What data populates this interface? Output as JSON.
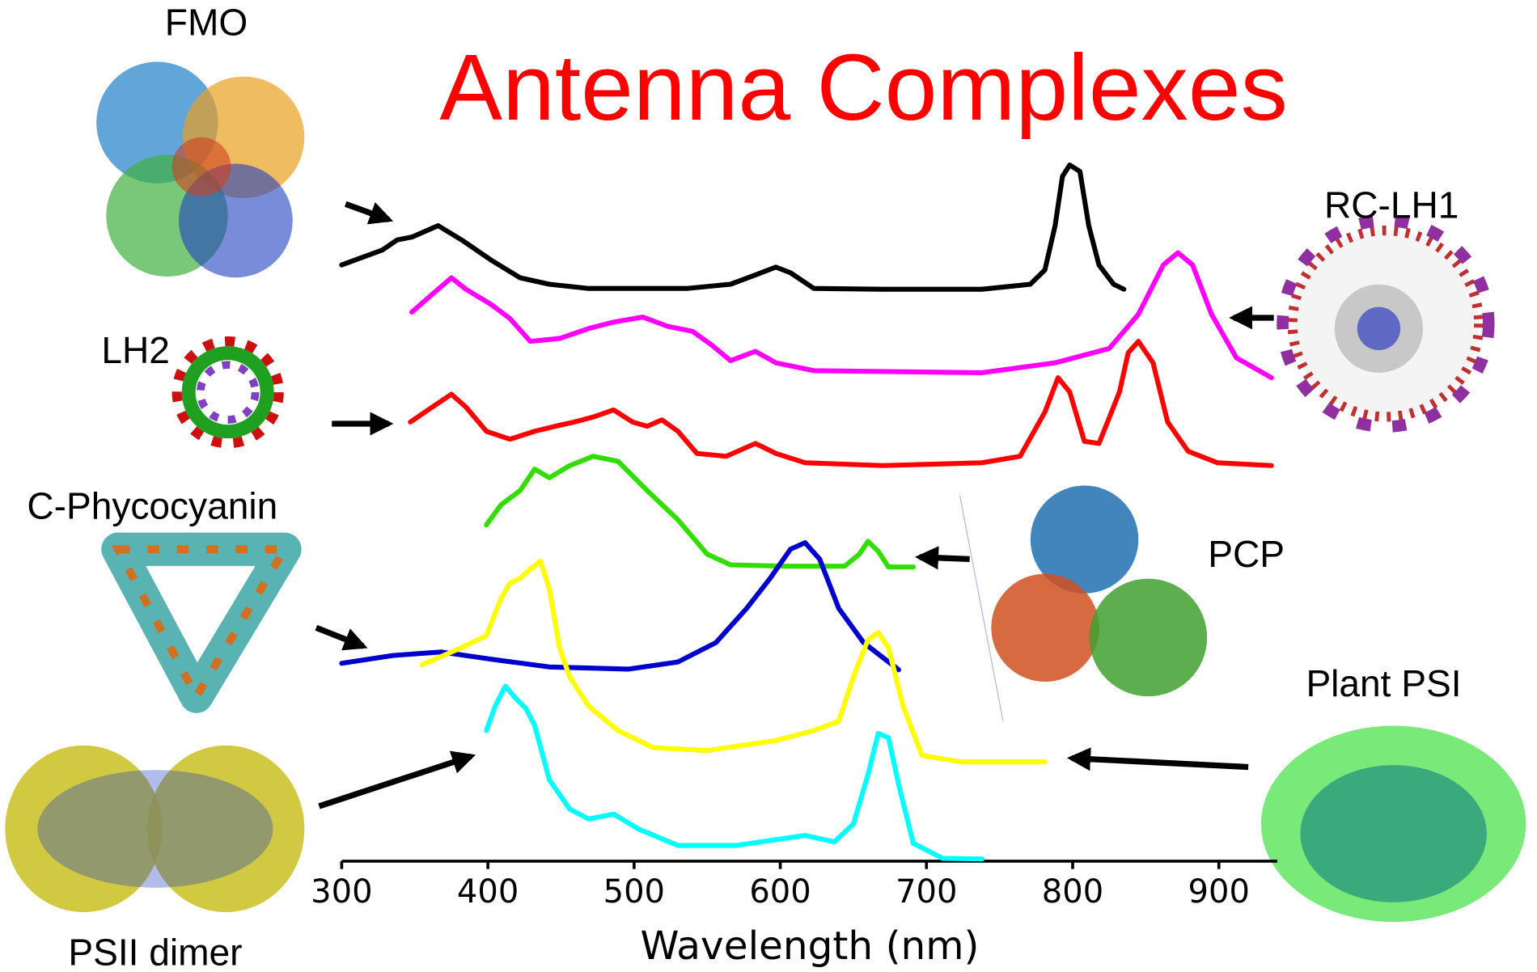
{
  "chart_data": {
    "type": "line",
    "title": "Antenna Complexes",
    "x_label": "Wavelength (nm)",
    "xlim": [
      300,
      940
    ],
    "xticks": [
      300,
      400,
      500,
      600,
      700,
      800,
      900
    ],
    "ylim": [
      0,
      100
    ],
    "grid": false,
    "series": [
      {
        "name": "FMO",
        "color": "#000000",
        "x": [
          300,
          328,
          338,
          348,
          366,
          382,
          402,
          422,
          442,
          469,
          536,
          566,
          583,
          597,
          607,
          623,
          670,
          738,
          771,
          781,
          788,
          793,
          798,
          805,
          811,
          818,
          828,
          835
        ],
        "values": [
          83.5,
          85.6,
          87.0,
          87.4,
          89.0,
          87.0,
          84.2,
          81.7,
          80.8,
          80.2,
          80.2,
          80.8,
          82.1,
          83.2,
          82.4,
          80.2,
          80.1,
          80.1,
          80.8,
          82.8,
          89.0,
          95.9,
          97.5,
          96.6,
          89.0,
          83.5,
          80.8,
          80.1
        ]
      },
      {
        "name": "RC-LH1",
        "color": "#ff00ff",
        "x": [
          348,
          362,
          375,
          385,
          402,
          415,
          429,
          449,
          469,
          486,
          506,
          523,
          540,
          553,
          566,
          583,
          597,
          623,
          738,
          788,
          825,
          845,
          862,
          872,
          882,
          895,
          912,
          936
        ],
        "values": [
          76.9,
          79.4,
          81.7,
          80.1,
          78.0,
          76.0,
          72.8,
          73.2,
          74.6,
          75.5,
          76.2,
          74.9,
          74.2,
          72.3,
          70.1,
          71.4,
          69.8,
          68.7,
          68.4,
          69.8,
          71.8,
          76.6,
          83.5,
          85.2,
          83.5,
          76.6,
          70.5,
          67.7
        ]
      },
      {
        "name": "LH2",
        "color": "#ff0000",
        "x": [
          347,
          362,
          375,
          385,
          399,
          415,
          432,
          446,
          459,
          472,
          486,
          499,
          509,
          519,
          530,
          543,
          563,
          583,
          597,
          617,
          670,
          738,
          764,
          781,
          790,
          798,
          808,
          818,
          832,
          838,
          845,
          855,
          865,
          879,
          899,
          936
        ],
        "values": [
          61.5,
          63.6,
          65.4,
          63.6,
          60.2,
          59.1,
          60.2,
          60.9,
          61.5,
          62.2,
          63.2,
          61.5,
          60.9,
          61.8,
          60.2,
          57.1,
          56.7,
          58.5,
          57.1,
          55.8,
          55.4,
          55.8,
          56.7,
          62.9,
          67.7,
          65.7,
          58.8,
          58.5,
          65.7,
          71.2,
          72.8,
          69.8,
          61.5,
          57.4,
          55.8,
          55.4
        ]
      },
      {
        "name": "PCP",
        "color": "#33dd00",
        "x": [
          399,
          409,
          422,
          432,
          442,
          456,
          472,
          489,
          509,
          530,
          550,
          566,
          603,
          644,
          654,
          660,
          667,
          674,
          691
        ],
        "values": [
          47.1,
          49.9,
          51.9,
          54.9,
          53.7,
          55.4,
          56.7,
          56.0,
          51.9,
          47.8,
          43.0,
          41.5,
          41.3,
          41.3,
          43.0,
          44.8,
          43.4,
          41.2,
          41.2
        ]
      },
      {
        "name": "C-Phycocyanin",
        "color": "#0000cc",
        "x": [
          300,
          335,
          368,
          402,
          442,
          496,
          530,
          556,
          577,
          593,
          607,
          617,
          627,
          640,
          657,
          681
        ],
        "values": [
          27.7,
          28.8,
          29.3,
          28.3,
          27.2,
          26.9,
          27.9,
          30.6,
          35.4,
          39.6,
          43.7,
          44.6,
          42.3,
          35.4,
          30.6,
          26.8
        ]
      },
      {
        "name": "Plant PSI",
        "color": "#ffff00",
        "x": [
          355,
          382,
          399,
          409,
          415,
          422,
          429,
          436,
          442,
          449,
          456,
          469,
          489,
          513,
          550,
          597,
          623,
          640,
          650,
          660,
          667,
          674,
          684,
          697,
          724,
          781
        ],
        "values": [
          27.5,
          29.9,
          31.6,
          36.8,
          38.9,
          39.6,
          40.9,
          42.0,
          38.2,
          29.9,
          25.8,
          21.7,
          18.3,
          15.9,
          15.5,
          16.9,
          18.3,
          19.6,
          25.8,
          31.0,
          32.0,
          29.9,
          21.7,
          14.8,
          13.9,
          13.9
        ]
      },
      {
        "name": "PSII dimer",
        "color": "#00ffff",
        "x": [
          399,
          405,
          412,
          419,
          426,
          432,
          442,
          456,
          469,
          486,
          503,
          530,
          570,
          617,
          637,
          650,
          660,
          667,
          674,
          681,
          691,
          711,
          738
        ],
        "values": [
          18.3,
          21.7,
          24.5,
          22.8,
          21.4,
          19.0,
          11.4,
          7.3,
          5.9,
          6.6,
          4.5,
          2.2,
          2.2,
          3.6,
          2.7,
          5.2,
          12.1,
          17.9,
          17.3,
          10.7,
          2.5,
          0.4,
          0.3
        ]
      }
    ]
  }
}
